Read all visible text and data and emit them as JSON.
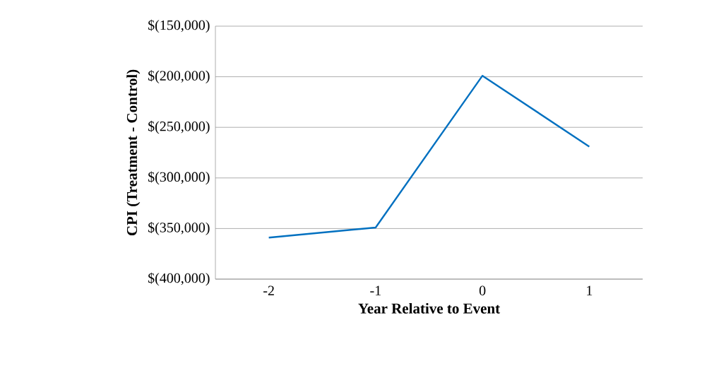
{
  "chart_data": {
    "type": "line",
    "xlabel": "Year Relative to Event",
    "ylabel": "CPI (Treatment - Control)",
    "categories": [
      "-2",
      "-1",
      "0",
      "1"
    ],
    "series": [
      {
        "color": "#0070c0",
        "values": [
          -359000,
          -349000,
          -199000,
          -269000
        ]
      }
    ],
    "ylim": [
      -400000,
      -150000
    ],
    "yticks": [
      {
        "value": -400000,
        "label": "$(400,000)"
      },
      {
        "value": -350000,
        "label": "$(350,000)"
      },
      {
        "value": -300000,
        "label": "$(300,000)"
      },
      {
        "value": -250000,
        "label": "$(250,000)"
      },
      {
        "value": -200000,
        "label": "$(200,000)"
      },
      {
        "value": -150000,
        "label": "$(150,000)"
      }
    ],
    "grid": "y",
    "marker": "none",
    "line_style": "solid"
  }
}
